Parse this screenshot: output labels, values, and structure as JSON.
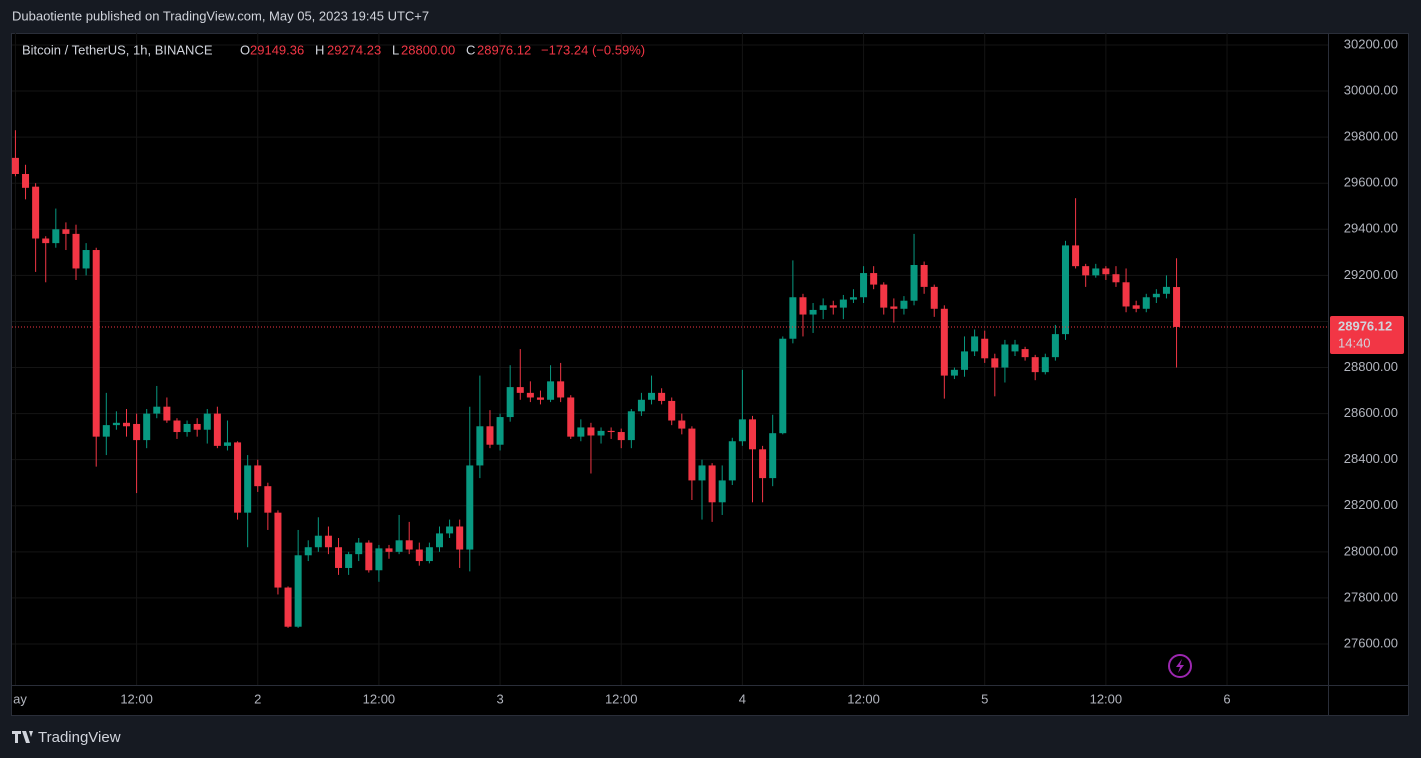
{
  "published": "Dubaotiente published on TradingView.com, May 05, 2023 19:45 UTC+7",
  "footer": "TradingView",
  "chart_data": {
    "type": "candlestick",
    "title": "Bitcoin / TetherUS, 1h, BINANCE",
    "legend": [
      {
        "key": "O",
        "value": {
          "value": 29149.36,
          "label": "29149.36"
        }
      },
      {
        "key": "H",
        "value": {
          "value": 29274.23,
          "label": "29274.23"
        }
      },
      {
        "key": "L",
        "value": {
          "value": 28800.0,
          "label": "28800.00"
        }
      },
      {
        "key": "C",
        "value": {
          "value": 28976.12,
          "label": "28976.12"
        }
      }
    ],
    "change": {
      "value": -173.24,
      "label": "−173.24 (−0.59%)"
    },
    "last_price": 28976.12,
    "countdown": "14:40",
    "up_color": "#089981",
    "down_color": "#f23645",
    "grid": true,
    "x": [
      0,
      1,
      2,
      3,
      4,
      5,
      6,
      7,
      8,
      9,
      10,
      11,
      12,
      13,
      14,
      15,
      16,
      17,
      18,
      19,
      20,
      21,
      22,
      23,
      24,
      25,
      26,
      27,
      28,
      29,
      30,
      31,
      32,
      33,
      34,
      35,
      36,
      37,
      38,
      39,
      40,
      41,
      42,
      43,
      44,
      45,
      46,
      47,
      48,
      49,
      50,
      51,
      52,
      53,
      54,
      55,
      56,
      57,
      58,
      59,
      60,
      61,
      62,
      63,
      64,
      65,
      66,
      67,
      68,
      69,
      70,
      71,
      72,
      73,
      74,
      75,
      76,
      77,
      78,
      79,
      80,
      81,
      82,
      83,
      84,
      85,
      86,
      87,
      88,
      89,
      90,
      91,
      92,
      93,
      94,
      95,
      96,
      97,
      98,
      99,
      100,
      101,
      102,
      103,
      104,
      105,
      106,
      107,
      108,
      109,
      110,
      111,
      112,
      113,
      114,
      115
    ],
    "open": [
      29710,
      29640,
      29585,
      29360,
      29340,
      29400,
      29380,
      29230,
      29310,
      28500,
      28550,
      28560,
      28555,
      28485,
      28600,
      28630,
      28570,
      28520,
      28555,
      28530,
      28600,
      28460,
      28475,
      28170,
      28375,
      28285,
      28170,
      27845,
      27675,
      27985,
      28020,
      28070,
      28020,
      27930,
      27990,
      28040,
      27920,
      28015,
      28000,
      28050,
      28010,
      27960,
      28020,
      28080,
      28110,
      28010,
      28375,
      28545,
      28465,
      28585,
      28715,
      28690,
      28670,
      28660,
      28740,
      28670,
      28500,
      28540,
      28505,
      28525,
      28520,
      28485,
      28610,
      28660,
      28690,
      28655,
      28570,
      28535,
      28310,
      28375,
      28215,
      28310,
      28480,
      28575,
      28445,
      28320,
      28515,
      28925,
      29105,
      29030,
      29050,
      29070,
      29060,
      29095,
      29105,
      29210,
      29160,
      29065,
      29055,
      29090,
      29245,
      29150,
      29055,
      28765,
      28790,
      28870,
      28925,
      28840,
      28800,
      28870,
      28880,
      28845,
      28780,
      28845,
      28945,
      29330,
      29240,
      29200,
      29230,
      29205,
      29170,
      29070,
      29055,
      29105,
      29120,
      29149.36
    ],
    "high": [
      29830,
      29680,
      29600,
      29370,
      29490,
      29430,
      29420,
      29340,
      29320,
      28690,
      28610,
      28620,
      28600,
      28620,
      28720,
      28670,
      28580,
      28570,
      28580,
      28620,
      28630,
      28570,
      28480,
      28420,
      28400,
      28300,
      28180,
      27850,
      28095,
      28050,
      28150,
      28110,
      28060,
      28000,
      28060,
      28050,
      28030,
      28030,
      28160,
      28130,
      28040,
      28040,
      28110,
      28140,
      28140,
      28630,
      28765,
      28615,
      28600,
      28810,
      28880,
      28740,
      28700,
      28810,
      28820,
      28680,
      28575,
      28560,
      28540,
      28540,
      28535,
      28620,
      28690,
      28765,
      28710,
      28670,
      28600,
      28545,
      28400,
      28385,
      28375,
      28495,
      28790,
      28590,
      28460,
      28595,
      28935,
      29265,
      29120,
      29080,
      29100,
      29090,
      29115,
      29140,
      29240,
      29240,
      29170,
      29100,
      29110,
      29380,
      29260,
      29160,
      29070,
      28800,
      28935,
      28965,
      28960,
      28860,
      28920,
      28920,
      28890,
      28855,
      28860,
      28985,
      29350,
      29535,
      29250,
      29250,
      29240,
      29240,
      29230,
      29090,
      29120,
      29140,
      29200,
      29274.23
    ],
    "low": [
      29630,
      29530,
      29215,
      29170,
      29320,
      29310,
      29180,
      29200,
      28370,
      28420,
      28530,
      28500,
      28255,
      28450,
      28580,
      28560,
      28490,
      28500,
      28500,
      28470,
      28450,
      28440,
      28140,
      28020,
      28260,
      28095,
      27815,
      27670,
      27670,
      27960,
      28000,
      27990,
      27900,
      27900,
      27960,
      27910,
      27870,
      27970,
      27990,
      27990,
      27940,
      27950,
      28000,
      28060,
      27930,
      27915,
      28320,
      28450,
      28440,
      28565,
      28660,
      28650,
      28640,
      28650,
      28650,
      28490,
      28480,
      28340,
      28470,
      28490,
      28450,
      28450,
      28590,
      28640,
      28640,
      28550,
      28510,
      28225,
      28140,
      28130,
      28160,
      28290,
      28460,
      28215,
      28215,
      28285,
      28510,
      28905,
      28935,
      28950,
      29010,
      29030,
      29010,
      29080,
      29080,
      29140,
      29030,
      28995,
      29030,
      29070,
      29120,
      29020,
      28665,
      28750,
      28760,
      28850,
      28820,
      28675,
      28735,
      28850,
      28830,
      28745,
      28770,
      28830,
      28920,
      29230,
      29150,
      29190,
      29180,
      29150,
      29040,
      29040,
      29040,
      29080,
      29100,
      28800
    ],
    "close": [
      29640,
      29580,
      29360,
      29340,
      29400,
      29380,
      29230,
      29310,
      28500,
      28550,
      28560,
      28545,
      28485,
      28600,
      28630,
      28570,
      28520,
      28555,
      28530,
      28600,
      28460,
      28475,
      28170,
      28375,
      28285,
      28170,
      27845,
      27675,
      27985,
      28020,
      28070,
      28020,
      27930,
      27990,
      28040,
      27920,
      28015,
      28000,
      28050,
      28010,
      27960,
      28020,
      28080,
      28110,
      28010,
      28375,
      28545,
      28465,
      28585,
      28715,
      28690,
      28670,
      28660,
      28740,
      28670,
      28500,
      28540,
      28505,
      28525,
      28520,
      28485,
      28610,
      28660,
      28690,
      28655,
      28570,
      28535,
      28310,
      28375,
      28215,
      28310,
      28480,
      28575,
      28445,
      28320,
      28515,
      28925,
      29105,
      29030,
      29050,
      29070,
      29060,
      29095,
      29105,
      29210,
      29160,
      29060,
      29055,
      29090,
      29245,
      29150,
      29055,
      28765,
      28790,
      28870,
      28935,
      28840,
      28800,
      28900,
      28900,
      28845,
      28780,
      28845,
      28945,
      29330,
      29240,
      29200,
      29230,
      29205,
      29170,
      29065,
      29055,
      29105,
      29120,
      29150,
      28976.12
    ],
    "xlim": [
      -0.34,
      130
    ],
    "xticks": [
      {
        "value": 0,
        "label": "ay"
      },
      {
        "value": 12,
        "label": "12:00"
      },
      {
        "value": 24,
        "label": "2"
      },
      {
        "value": 36,
        "label": "12:00"
      },
      {
        "value": 48,
        "label": "3"
      },
      {
        "value": 60,
        "label": "12:00"
      },
      {
        "value": 72,
        "label": "4"
      },
      {
        "value": 84,
        "label": "12:00"
      },
      {
        "value": 96,
        "label": "5"
      },
      {
        "value": 108,
        "label": "12:00"
      },
      {
        "value": 120,
        "label": "6"
      }
    ],
    "ylim": [
      27422,
      30252
    ],
    "yticks": [
      {
        "value": 27600,
        "label": "27600.00"
      },
      {
        "value": 27800,
        "label": "27800.00"
      },
      {
        "value": 28000,
        "label": "28000.00"
      },
      {
        "value": 28200,
        "label": "28200.00"
      },
      {
        "value": 28400,
        "label": "28400.00"
      },
      {
        "value": 28600,
        "label": "28600.00"
      },
      {
        "value": 28800,
        "label": "28800.00"
      },
      {
        "value": 29000,
        "label": "29000.00"
      },
      {
        "value": 29200,
        "label": "29200.00"
      },
      {
        "value": 29400,
        "label": "29400.00"
      },
      {
        "value": 29600,
        "label": "29600.00"
      },
      {
        "value": 29800,
        "label": "29800.00"
      },
      {
        "value": 30000,
        "label": "30000.00"
      },
      {
        "value": 30200,
        "label": "30200.00"
      }
    ]
  }
}
